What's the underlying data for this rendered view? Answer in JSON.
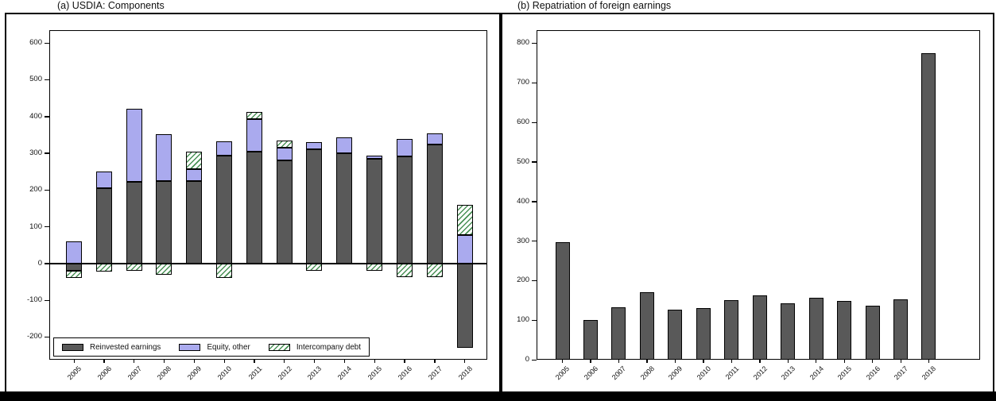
{
  "panels": [
    {
      "id": "a",
      "title": "(a) USDIA: Components"
    },
    {
      "id": "b",
      "title": "(b) Repatriation of foreign earnings"
    }
  ],
  "colors": {
    "reinvested_fill": "#595959",
    "equity_fill": "#aaaaee",
    "intercompany_hatch_line": "#4a9156",
    "bar_border": "#000000",
    "background": "#ffffff"
  },
  "chart_data": [
    {
      "type": "bar",
      "subtype": "stacked",
      "title": "(a) USDIA: Components",
      "categories": [
        "2005",
        "2006",
        "2007",
        "2008",
        "2009",
        "2010",
        "2011",
        "2012",
        "2013",
        "2014",
        "2015",
        "2016",
        "2017",
        "2018"
      ],
      "series": [
        {
          "name": "Reinvested earnings",
          "swatch": "solid-darkgray",
          "values": [
            -20,
            205,
            222,
            225,
            225,
            293,
            305,
            281,
            311,
            300,
            285,
            292,
            324,
            -230
          ]
        },
        {
          "name": "Equity, other",
          "swatch": "solid-lavender",
          "values": [
            61,
            46,
            198,
            126,
            32,
            40,
            88,
            35,
            19,
            43,
            9,
            47,
            29,
            77
          ]
        },
        {
          "name": "Intercompany debt",
          "swatch": "green-diagonal-hatch",
          "values": [
            -20,
            -22,
            -20,
            -31,
            48,
            -40,
            19,
            19,
            -19,
            0,
            -20,
            -37,
            -37,
            83
          ]
        }
      ],
      "xlabel": "",
      "ylabel": "",
      "ylim": [
        -262,
        635
      ],
      "yticks": [
        600,
        500,
        400,
        300,
        200,
        100,
        0,
        -100,
        -200
      ],
      "grid": false,
      "zero_line": true,
      "legend_position": "bottom-left-inside"
    },
    {
      "type": "bar",
      "subtype": "simple",
      "title": "(b) Repatriation of foreign earnings",
      "categories": [
        "2005",
        "2006",
        "2007",
        "2008",
        "2009",
        "2010",
        "2011",
        "2012",
        "2013",
        "2014",
        "2015",
        "2016",
        "2017",
        "2018"
      ],
      "values": [
        297,
        100,
        132,
        170,
        127,
        131,
        150,
        163,
        142,
        156,
        148,
        137,
        153,
        775
      ],
      "bar_color": "solid-darkgray",
      "xlabel": "",
      "ylabel": "",
      "ylim": [
        0,
        833
      ],
      "yticks": [
        800,
        700,
        600,
        500,
        400,
        300,
        200,
        100,
        0
      ],
      "grid": false,
      "legend_position": "none"
    }
  ]
}
